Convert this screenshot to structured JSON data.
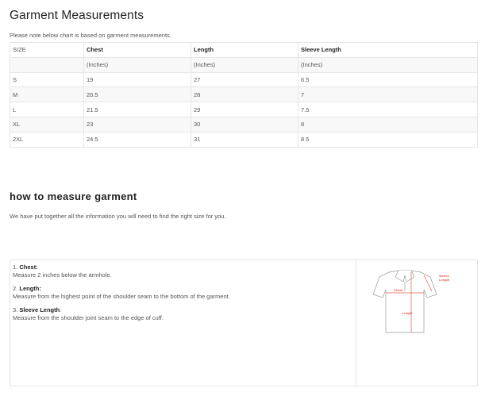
{
  "title": "Garment Measurements",
  "note": "Please note below chart is based on garment measurements.",
  "table": {
    "headers": [
      "SIZE",
      "Chest",
      "Length",
      "Sleeve Length"
    ],
    "units": [
      "",
      "(Inches)",
      "(Inches)",
      "(Inches)"
    ],
    "rows": [
      [
        "S",
        "19",
        "27",
        "6.5"
      ],
      [
        "M",
        "20.5",
        "28",
        "7"
      ],
      [
        "L",
        "21.5",
        "29",
        "7.5"
      ],
      [
        "XL",
        "23",
        "30",
        "8"
      ],
      [
        "2XL",
        "24.5",
        "31",
        "8.5"
      ]
    ]
  },
  "how": {
    "title": "how to measure garment",
    "intro": "We have put together all the information you will need to find the right size for you."
  },
  "steps": [
    {
      "num": "1.",
      "label": "Chest:",
      "text": "Measure 2 inches below the armhole."
    },
    {
      "num": "2.",
      "label": "Length:",
      "text": "Measure from the highest point of the shoulder seam to the bottom of the garment."
    },
    {
      "num": "3.",
      "label": "Sleeve Length",
      "colon": ":",
      "text": "Measure from the shoulder joint seam to the edge of cuff."
    }
  ],
  "diagram": {
    "chest": "Chest",
    "length": "Length",
    "sleeve1": "Sleeve",
    "sleeve2": "Length",
    "accent": "#e8574a"
  }
}
